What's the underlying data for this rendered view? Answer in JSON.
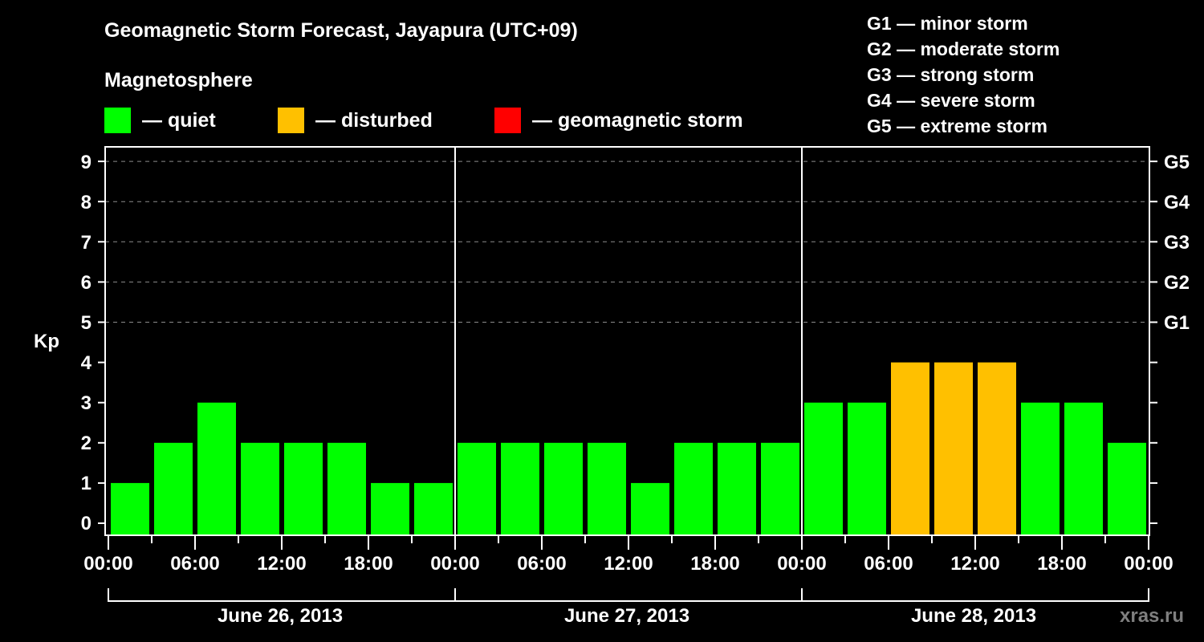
{
  "title": "Geomagnetic Storm Forecast, Jayapura (UTC+09)",
  "subtitle": "Magnetosphere",
  "legend": [
    {
      "label": "— quiet",
      "color": "#00ff00"
    },
    {
      "label": "— disturbed",
      "color": "#ffc000"
    },
    {
      "label": "— geomagnetic storm",
      "color": "#ff0000"
    }
  ],
  "g_scale": [
    "G1 — minor storm",
    "G2 — moderate storm",
    "G3 — strong storm",
    "G4 — severe storm",
    "G5 — extreme storm"
  ],
  "y_axis_label": "Kp",
  "y_ticks": [
    "0",
    "1",
    "2",
    "3",
    "4",
    "5",
    "6",
    "7",
    "8",
    "9"
  ],
  "g_ticks": [
    "G1",
    "G2",
    "G3",
    "G4",
    "G5"
  ],
  "x_ticks": [
    "00:00",
    "06:00",
    "12:00",
    "18:00",
    "00:00",
    "06:00",
    "12:00",
    "18:00",
    "00:00",
    "06:00",
    "12:00",
    "18:00",
    "00:00"
  ],
  "dates": [
    "June 26, 2013",
    "June 27, 2013",
    "June 28, 2013"
  ],
  "watermark": "xras.ru",
  "chart_data": {
    "type": "bar",
    "title": "Geomagnetic Storm Forecast, Jayapura (UTC+09)",
    "xlabel": "",
    "ylabel": "Kp",
    "ylim": [
      0,
      9
    ],
    "grid": "dashed horizontal at Kp 5-9",
    "legend_position": "top",
    "categories": [
      "June 26 00-03",
      "June 26 03-06",
      "June 26 06-09",
      "June 26 09-12",
      "June 26 12-15",
      "June 26 15-18",
      "June 26 18-21",
      "June 26 21-24",
      "June 27 00-03",
      "June 27 03-06",
      "June 27 06-09",
      "June 27 09-12",
      "June 27 12-15",
      "June 27 15-18",
      "June 27 18-21",
      "June 27 21-24",
      "June 28 00-03",
      "June 28 03-06",
      "June 28 06-09",
      "June 28 09-12",
      "June 28 12-15",
      "June 28 15-18",
      "June 28 18-21",
      "June 28 21-24"
    ],
    "values": [
      1,
      2,
      3,
      2,
      2,
      2,
      1,
      1,
      2,
      2,
      2,
      2,
      1,
      2,
      2,
      2,
      3,
      3,
      4,
      4,
      4,
      3,
      3,
      2
    ],
    "status": [
      "quiet",
      "quiet",
      "quiet",
      "quiet",
      "quiet",
      "quiet",
      "quiet",
      "quiet",
      "quiet",
      "quiet",
      "quiet",
      "quiet",
      "quiet",
      "quiet",
      "quiet",
      "quiet",
      "quiet",
      "quiet",
      "disturbed",
      "disturbed",
      "disturbed",
      "quiet",
      "quiet",
      "quiet"
    ],
    "colors": {
      "quiet": "#00ff00",
      "disturbed": "#ffc000",
      "storm": "#ff0000"
    },
    "right_axis": {
      "5": "G1",
      "6": "G2",
      "7": "G3",
      "8": "G4",
      "9": "G5"
    }
  }
}
